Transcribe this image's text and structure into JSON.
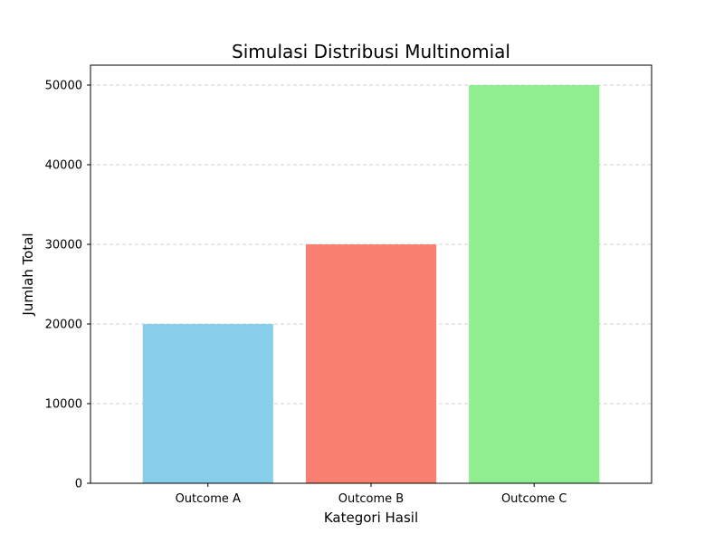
{
  "chart_data": {
    "type": "bar",
    "title": "Simulasi Distribusi Multinomial",
    "xlabel": "Kategori Hasil",
    "ylabel": "Jumlah Total",
    "categories": [
      "Outcome A",
      "Outcome B",
      "Outcome C"
    ],
    "values": [
      20000,
      30000,
      50000
    ],
    "colors": [
      "#87ceeb",
      "#fa8072",
      "#90ee90"
    ],
    "ylim": [
      0,
      52500
    ],
    "yticks": [
      0,
      10000,
      20000,
      30000,
      40000,
      50000
    ],
    "grid": "y-dashed",
    "legend": "none"
  }
}
